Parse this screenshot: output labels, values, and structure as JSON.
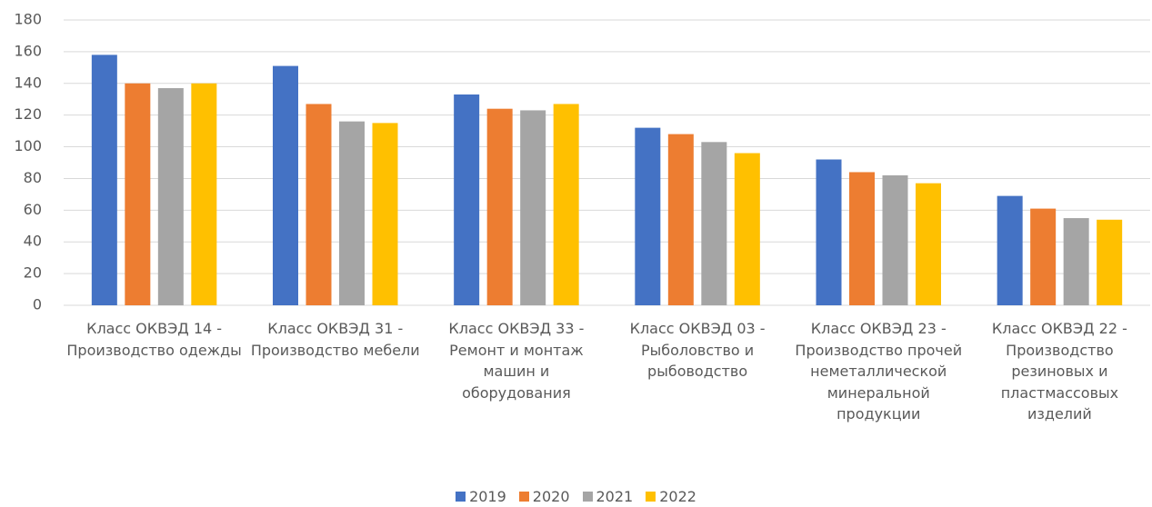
{
  "chart_data": {
    "type": "bar",
    "categories": [
      "Класс ОКВЭД 14 - Производство одежды",
      "Класс ОКВЭД 31 - Производство мебели",
      "Класс ОКВЭД 33 - Ремонт и монтаж машин и оборудования",
      "Класс ОКВЭД 03 - Рыболовство и рыбоводство",
      "Класс ОКВЭД 23 - Производство прочей неметаллической минеральной продукции",
      "Класс ОКВЭД 22 - Производство резиновых и пластмассовых изделий"
    ],
    "series": [
      {
        "name": "2019",
        "color": "#4472c4",
        "values": [
          158,
          151,
          133,
          112,
          92,
          69
        ]
      },
      {
        "name": "2020",
        "color": "#ed7d31",
        "values": [
          140,
          127,
          124,
          108,
          84,
          61
        ]
      },
      {
        "name": "2021",
        "color": "#a5a5a5",
        "values": [
          137,
          116,
          123,
          103,
          82,
          55
        ]
      },
      {
        "name": "2022",
        "color": "#ffc000",
        "values": [
          140,
          115,
          127,
          96,
          77,
          54
        ]
      }
    ],
    "ylim": [
      0,
      180
    ],
    "yticks": [
      0,
      20,
      40,
      60,
      80,
      100,
      120,
      140,
      160,
      180
    ],
    "grid": true,
    "legend": "bottom"
  }
}
